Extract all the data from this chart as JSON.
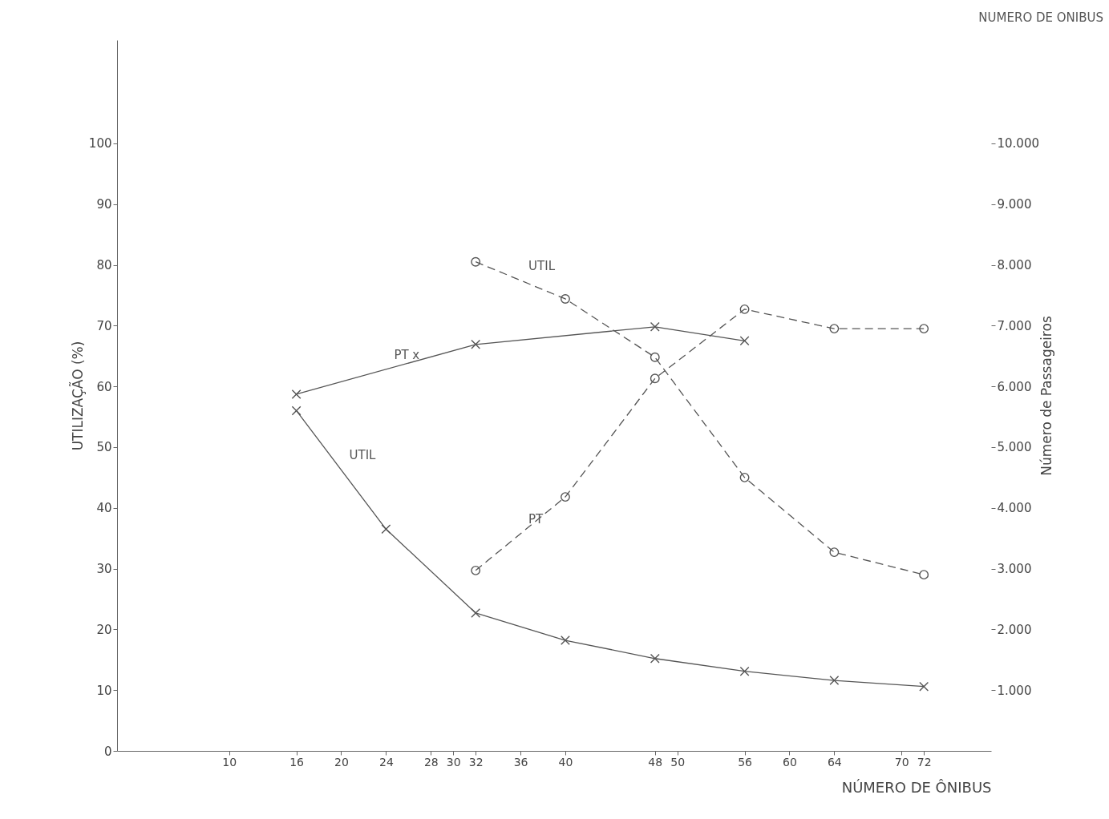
{
  "chart_data": {
    "type": "line",
    "xlabel": "NÚMERO DE ÔNIBUS",
    "ylabel": "UTILIZAÇÃO (%)",
    "y2label": "Número de Passageiros",
    "xlim": [
      0,
      78
    ],
    "xticks": [
      10,
      16,
      20,
      24,
      28,
      30,
      32,
      36,
      40,
      48,
      50,
      56,
      60,
      64,
      70,
      72
    ],
    "ylim": [
      0,
      117
    ],
    "yticks": [
      0,
      10,
      20,
      30,
      40,
      50,
      60,
      70,
      80,
      90,
      100
    ],
    "y2lim": [
      0,
      11700
    ],
    "y2ticks": [
      {
        "value": 1000,
        "label": "1.000"
      },
      {
        "value": 2000,
        "label": "2.000"
      },
      {
        "value": 3000,
        "label": "3.000"
      },
      {
        "value": 4000,
        "label": "4.000"
      },
      {
        "value": 5000,
        "label": "5.000"
      },
      {
        "value": 6000,
        "label": "6.000"
      },
      {
        "value": 7000,
        "label": "7.000"
      },
      {
        "value": 8000,
        "label": "8.000"
      },
      {
        "value": 9000,
        "label": "9.000"
      },
      {
        "value": 10000,
        "label": "10.000"
      }
    ],
    "series": [
      {
        "name": "PT x",
        "color": "#555555",
        "axis": "y2",
        "marker": "cross",
        "line_style": "solid",
        "x": [
          16,
          32,
          48,
          56
        ],
        "values": [
          5870,
          6690,
          6980,
          6750
        ]
      },
      {
        "name": "UTIL",
        "color": "#555555",
        "marker": "cross",
        "line_style": "solid",
        "x": [
          16,
          24,
          32,
          40,
          48,
          56,
          64,
          72
        ],
        "values": [
          56,
          36.5,
          22.7,
          18.2,
          15.2,
          13.1,
          11.6,
          10.6
        ]
      },
      {
        "name": "PT",
        "color": "#555555",
        "axis": "y2",
        "marker": "circle",
        "line_style": "dashed",
        "x": [
          32,
          40,
          48,
          56,
          64,
          72
        ],
        "values": [
          2970,
          4180,
          6130,
          7270,
          6950,
          6950
        ]
      },
      {
        "name": "UTIL",
        "color": "#555555",
        "marker": "circle",
        "line_style": "dashed",
        "x": [
          32,
          40,
          48,
          56,
          64,
          72
        ],
        "values": [
          80.5,
          74.4,
          64.8,
          45,
          32.7,
          29
        ]
      }
    ],
    "annotations": [
      "NUMERO DE ONIBUS"
    ],
    "grid": false
  }
}
